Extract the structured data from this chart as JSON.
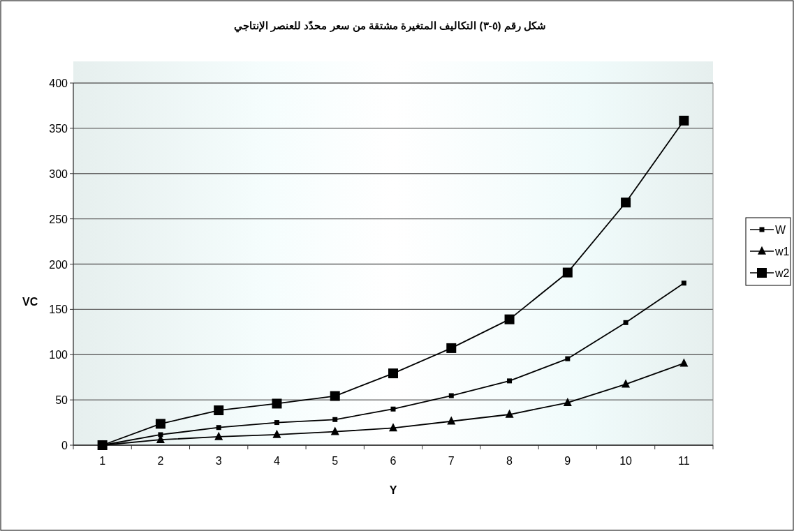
{
  "chart_data": {
    "type": "line",
    "title": "شكل رقم (٥-٣) التكاليف المتغيرة مشتقة من سعر محدّد للعنصر الإنتاجي",
    "xlabel": "Y",
    "ylabel": "VC",
    "categories": [
      "1",
      "2",
      "3",
      "4",
      "5",
      "6",
      "7",
      "8",
      "9",
      "10",
      "11"
    ],
    "series": [
      {
        "name": "W",
        "color": "#000000",
        "marker": "square",
        "values": [
          0,
          11.6,
          19.5,
          25,
          28.3,
          39.9,
          54.7,
          71,
          95.5,
          135.4,
          179
        ]
      },
      {
        "name": "w1",
        "color": "#000000",
        "marker": "triangle",
        "values": [
          0,
          6,
          9.3,
          11.6,
          14.9,
          19,
          26.4,
          33.9,
          46.9,
          67.3,
          90.5
        ]
      },
      {
        "name": "w2",
        "color": "#000000",
        "marker": "square",
        "values": [
          0,
          23.6,
          38.5,
          45.9,
          54.3,
          79.3,
          107.2,
          139,
          190.7,
          268,
          358.5
        ]
      }
    ],
    "ylim": [
      0,
      400
    ],
    "yticks": [
      0,
      50,
      100,
      150,
      200,
      250,
      300,
      350,
      400
    ],
    "grid": "y",
    "legend": "right",
    "line_style": "solid"
  }
}
